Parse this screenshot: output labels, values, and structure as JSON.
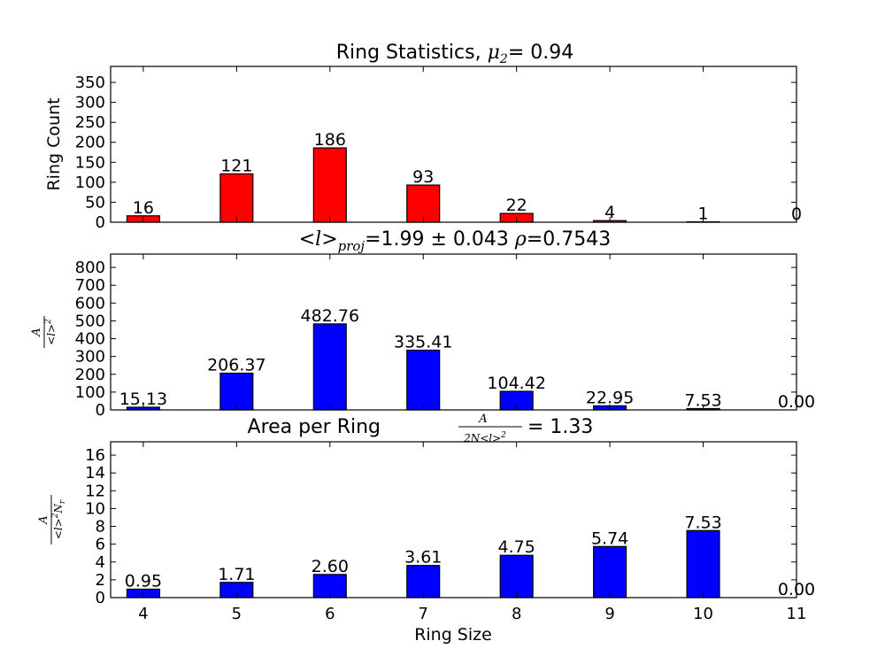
{
  "chart_data": [
    {
      "type": "bar",
      "title": "Ring Statistics, μ₂= 0.94",
      "title_parts": {
        "prefix": "Ring Statistics, ",
        "symbol": "μ",
        "subscript": "2",
        "suffix": "= 0.94"
      },
      "ylabel": "Ring Count",
      "xlabel": "",
      "categories": [
        4,
        5,
        6,
        7,
        8,
        9,
        10,
        11
      ],
      "values": [
        16,
        121,
        186,
        93,
        22,
        4,
        1,
        0
      ],
      "value_labels": [
        "16",
        "121",
        "186",
        "93",
        "22",
        "4",
        "1",
        "0"
      ],
      "ylim": [
        0,
        390
      ],
      "yticks": [
        0,
        50,
        100,
        150,
        200,
        250,
        300,
        350
      ],
      "ytick_labels": [
        "0",
        "50",
        "100",
        "150",
        "200",
        "250",
        "300",
        "350"
      ],
      "color": "#ff0000"
    },
    {
      "type": "bar",
      "title": "<l>proj=1.99 ± 0.043 ρ=0.7543",
      "title_parts": {
        "mean_symbol": "<l>",
        "mean_subscript": "proj",
        "mean_text": "=1.99 ± 0.043 ",
        "rho_symbol": "ρ",
        "rho_text": "=0.7543"
      },
      "ylabel": "A / <l>²",
      "ylabel_parts": {
        "numerator": "A",
        "denominator": "<l>",
        "power": "2"
      },
      "xlabel": "",
      "categories": [
        4,
        5,
        6,
        7,
        8,
        9,
        10,
        11
      ],
      "values": [
        15.13,
        206.37,
        482.76,
        335.41,
        104.42,
        22.95,
        7.53,
        0.0
      ],
      "value_labels": [
        "15.13",
        "206.37",
        "482.76",
        "335.41",
        "104.42",
        "22.95",
        "7.53",
        "0.00"
      ],
      "ylim": [
        0,
        875
      ],
      "yticks": [
        0,
        100,
        200,
        300,
        400,
        500,
        600,
        700,
        800
      ],
      "ytick_labels": [
        "0",
        "100",
        "200",
        "300",
        "400",
        "500",
        "600",
        "700",
        "800"
      ],
      "color": "#0000ff"
    },
    {
      "type": "bar",
      "title": "Area per Ring A/(2N<l>²) = 1.33",
      "title_parts": {
        "prefix": "Area per Ring ",
        "numerator": "A",
        "denominator": "2N<l>",
        "power": "2",
        "suffix": "= 1.33"
      },
      "ylabel": "A / (<l>² Nr)",
      "ylabel_parts": {
        "numerator": "A",
        "denominator": "<l>",
        "power": "2",
        "tail": "N",
        "tail_sub": "r"
      },
      "xlabel": "Ring Size",
      "categories": [
        4,
        5,
        6,
        7,
        8,
        9,
        10,
        11
      ],
      "values": [
        0.95,
        1.71,
        2.6,
        3.61,
        4.75,
        5.74,
        7.53,
        0.0
      ],
      "value_labels": [
        "0.95",
        "1.71",
        "2.60",
        "3.61",
        "4.75",
        "5.74",
        "7.53",
        "0.00"
      ],
      "ylim": [
        0,
        17.5
      ],
      "yticks": [
        0,
        2,
        4,
        6,
        8,
        10,
        12,
        14,
        16
      ],
      "ytick_labels": [
        "0",
        "2",
        "4",
        "6",
        "8",
        "10",
        "12",
        "14",
        "16"
      ],
      "xtick_labels": [
        "4",
        "5",
        "6",
        "7",
        "8",
        "9",
        "10",
        "11"
      ],
      "color": "#0000ff"
    }
  ]
}
